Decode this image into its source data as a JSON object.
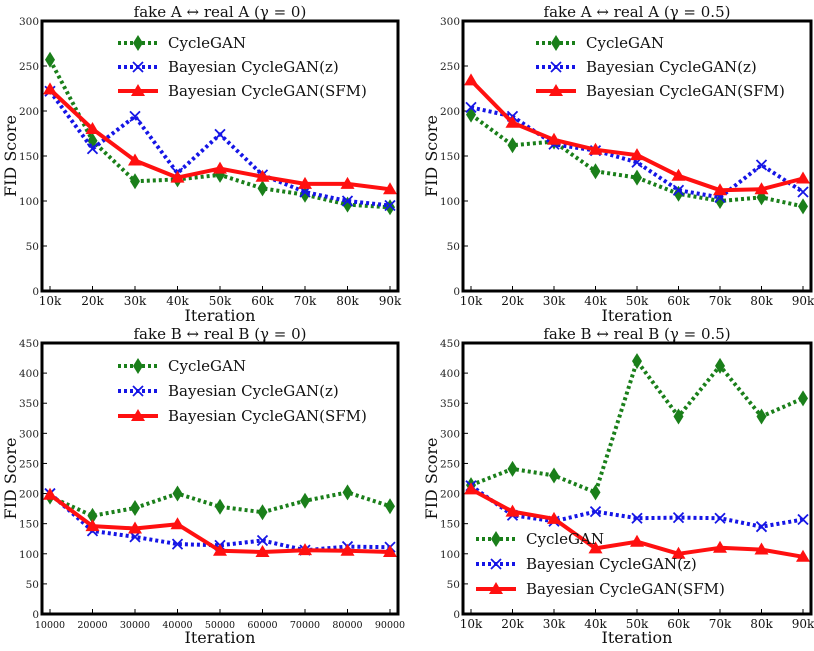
{
  "chart_data": [
    {
      "type": "line",
      "title": "fake A ↔ real A (γ = 0)",
      "xlabel": "Iteration",
      "ylabel": "FID Score",
      "categories": [
        "10k",
        "20k",
        "30k",
        "40k",
        "50k",
        "60k",
        "70k",
        "80k",
        "90k"
      ],
      "ylim": [
        0,
        300
      ],
      "yticks": [
        0,
        50,
        100,
        150,
        200,
        250,
        300
      ],
      "legend": "top-center",
      "series": [
        {
          "name": "CycleGAN",
          "style": "dotted",
          "marker": "diamond",
          "color": "#1a7f1a",
          "values": [
            257,
            167,
            122,
            124,
            129,
            114,
            107,
            96,
            93
          ]
        },
        {
          "name": "Bayesian CycleGAN(z)",
          "style": "dotted",
          "marker": "x",
          "color": "#1515e6",
          "values": [
            222,
            158,
            194,
            131,
            174,
            129,
            110,
            100,
            95
          ]
        },
        {
          "name": "Bayesian CycleGAN(SFM)",
          "style": "solid",
          "marker": "triangle",
          "color": "#ff1010",
          "values": [
            224,
            180,
            145,
            126,
            136,
            127,
            119,
            119,
            113
          ]
        }
      ]
    },
    {
      "type": "line",
      "title": "fake A ↔ real A (γ = 0.5)",
      "xlabel": "Iteration",
      "ylabel": "FID Score",
      "categories": [
        "10k",
        "20k",
        "30k",
        "40k",
        "50k",
        "60k",
        "70k",
        "80k",
        "90k"
      ],
      "ylim": [
        0,
        300
      ],
      "yticks": [
        0,
        50,
        100,
        150,
        200,
        250,
        300
      ],
      "legend": "top-center",
      "series": [
        {
          "name": "CycleGAN",
          "style": "dotted",
          "marker": "diamond",
          "color": "#1a7f1a",
          "values": [
            196,
            162,
            166,
            133,
            126,
            108,
            100,
            104,
            94
          ]
        },
        {
          "name": "Bayesian CycleGAN(z)",
          "style": "dotted",
          "marker": "x",
          "color": "#1515e6",
          "values": [
            204,
            194,
            163,
            156,
            143,
            112,
            104,
            140,
            110
          ]
        },
        {
          "name": "Bayesian CycleGAN(SFM)",
          "style": "solid",
          "marker": "triangle",
          "color": "#ff1010",
          "values": [
            234,
            187,
            168,
            157,
            151,
            128,
            112,
            113,
            125
          ]
        }
      ]
    },
    {
      "type": "line",
      "title": "fake B ↔ real B (γ = 0)",
      "xlabel": "Iteration",
      "ylabel": "FID Score",
      "categories": [
        "10000",
        "20000",
        "30000",
        "40000",
        "50000",
        "60000",
        "70000",
        "80000",
        "90000"
      ],
      "ylim": [
        0,
        450
      ],
      "yticks": [
        0,
        50,
        100,
        150,
        200,
        250,
        300,
        350,
        400,
        450
      ],
      "legend": "top-center",
      "series": [
        {
          "name": "CycleGAN",
          "style": "dotted",
          "marker": "diamond",
          "color": "#1a7f1a",
          "values": [
            195,
            163,
            176,
            200,
            178,
            169,
            188,
            202,
            179
          ]
        },
        {
          "name": "Bayesian CycleGAN(z)",
          "style": "dotted",
          "marker": "x",
          "color": "#1515e6",
          "values": [
            200,
            138,
            128,
            116,
            114,
            122,
            106,
            112,
            111
          ]
        },
        {
          "name": "Bayesian CycleGAN(SFM)",
          "style": "solid",
          "marker": "triangle",
          "color": "#ff1010",
          "values": [
            198,
            146,
            142,
            149,
            105,
            103,
            106,
            105,
            103
          ]
        }
      ]
    },
    {
      "type": "line",
      "title": "fake B ↔ real B (γ = 0.5)",
      "xlabel": "Iteration",
      "ylabel": "FID Score",
      "categories": [
        "10k",
        "20k",
        "30k",
        "40k",
        "50k",
        "60k",
        "70k",
        "80k",
        "90k"
      ],
      "ylim": [
        0,
        450
      ],
      "yticks": [
        0,
        50,
        100,
        150,
        200,
        250,
        300,
        350,
        400,
        450
      ],
      "legend": "bottom-left",
      "series": [
        {
          "name": "CycleGAN",
          "style": "dotted",
          "marker": "diamond",
          "color": "#1a7f1a",
          "values": [
            214,
            241,
            230,
            202,
            420,
            328,
            412,
            328,
            358
          ]
        },
        {
          "name": "Bayesian CycleGAN(z)",
          "style": "dotted",
          "marker": "x",
          "color": "#1515e6",
          "values": [
            213,
            164,
            154,
            170,
            159,
            160,
            159,
            145,
            157
          ]
        },
        {
          "name": "Bayesian CycleGAN(SFM)",
          "style": "solid",
          "marker": "triangle",
          "color": "#ff1010",
          "values": [
            207,
            170,
            158,
            109,
            120,
            100,
            110,
            107,
            95
          ]
        }
      ]
    }
  ]
}
